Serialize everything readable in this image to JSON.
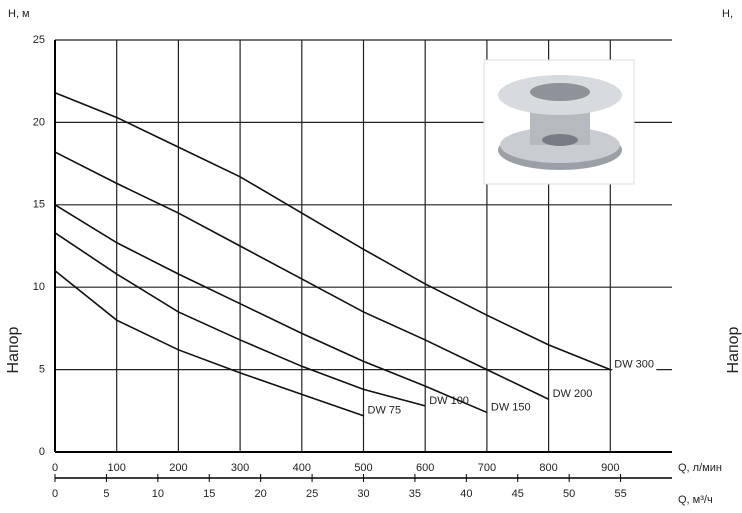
{
  "chart_data": {
    "type": "line",
    "y_label_top": "H, м",
    "y_label": "Напор",
    "x_label": "Q, л/мин",
    "x2_label": "Q, м³/ч",
    "x": [
      0,
      100,
      200,
      300,
      400,
      500,
      600,
      700,
      800,
      900
    ],
    "series": [
      {
        "name": "DW 75",
        "color": "#111111",
        "values": [
          11,
          8,
          6.2,
          4.8,
          3.5,
          2.2,
          null,
          null,
          null,
          null
        ]
      },
      {
        "name": "DW 100",
        "color": "#111111",
        "values": [
          13.3,
          10.8,
          8.5,
          6.8,
          5.2,
          3.8,
          2.8,
          null,
          null,
          null
        ]
      },
      {
        "name": "DW 150",
        "color": "#111111",
        "values": [
          15,
          12.7,
          10.8,
          9,
          7.2,
          5.5,
          4,
          2.4,
          null,
          null
        ]
      },
      {
        "name": "DW 200",
        "color": "#111111",
        "values": [
          18.2,
          16.3,
          14.5,
          12.5,
          10.5,
          8.5,
          6.8,
          5,
          3.2,
          null
        ]
      },
      {
        "name": "DW 300",
        "color": "#111111",
        "values": [
          21.8,
          20.3,
          18.5,
          16.7,
          14.5,
          12.3,
          10.2,
          8.3,
          6.5,
          5
        ]
      }
    ],
    "xlim": [
      0,
      1000
    ],
    "xticks": [
      0,
      100,
      200,
      300,
      400,
      500,
      600,
      700,
      800,
      900
    ],
    "x2lim": [
      0,
      60
    ],
    "x2ticks": [
      0,
      5,
      10,
      15,
      20,
      25,
      30,
      35,
      40,
      45,
      50,
      55
    ],
    "ylim": [
      0,
      25
    ],
    "yticks": [
      0,
      5,
      10,
      15,
      20,
      25
    ],
    "grid": true
  },
  "right_panel": {
    "y_label_top": "H,",
    "y_label": "Напор"
  }
}
